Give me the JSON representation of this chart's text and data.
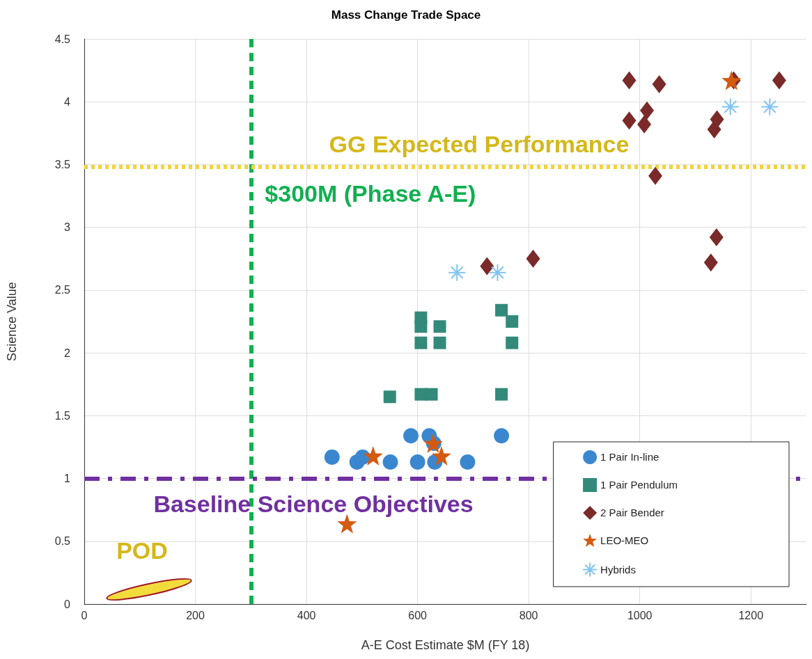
{
  "chart_data": {
    "type": "scatter",
    "title": "Mass Change Trade Space",
    "xlabel": "A-E Cost Estimate $M (FY 18)",
    "ylabel": "Science Value",
    "xlim": [
      0,
      1300
    ],
    "xticks": [
      0,
      200,
      400,
      600,
      800,
      1000,
      1200
    ],
    "ylim": [
      0,
      4.5
    ],
    "yticks": [
      0,
      0.5,
      1,
      1.5,
      2,
      2.5,
      3,
      3.5,
      4,
      4.5
    ],
    "grid": true,
    "legend": "bottom right",
    "series": [
      {
        "name": "1 Pair In-line",
        "color": "#3a87d0",
        "marker": "circle",
        "x": [
          446,
          491,
          501,
          551,
          588,
          600,
          621,
          629,
          631,
          690,
          751
        ],
        "values": [
          1.17,
          1.13,
          1.17,
          1.13,
          1.34,
          1.13,
          1.34,
          1.28,
          1.13,
          1.13,
          1.34
        ]
      },
      {
        "name": "1 Pair Pendulum",
        "color": "#338a7a",
        "marker": "square",
        "x": [
          550,
          606,
          625,
          606,
          606,
          606,
          640,
          640,
          751,
          770,
          770,
          751
        ],
        "values": [
          1.65,
          1.67,
          1.67,
          2.28,
          2.21,
          2.08,
          2.21,
          2.08,
          2.34,
          2.25,
          2.08,
          1.67
        ]
      },
      {
        "name": "2 Pair Bender",
        "color": "#7a2a28",
        "marker": "diamond",
        "x": [
          725,
          808,
          981,
          981,
          1013,
          1008,
          1035,
          1028,
          1134,
          1139,
          1138,
          1128,
          1169,
          1251
        ],
        "values": [
          2.69,
          2.75,
          3.85,
          4.17,
          3.93,
          3.82,
          4.14,
          3.41,
          3.78,
          3.86,
          2.92,
          2.72,
          4.17,
          4.17
        ]
      },
      {
        "name": "LEO-MEO",
        "color": "#d45a10",
        "marker": "star",
        "x": [
          473,
          520,
          628,
          643,
          1165
        ],
        "values": [
          0.64,
          1.18,
          1.28,
          1.18,
          4.17
        ]
      },
      {
        "name": "Hybrids",
        "color": "#80c4f0",
        "marker": "cross",
        "x": [
          671,
          744,
          1163,
          1234
        ],
        "values": [
          2.64,
          2.64,
          3.96,
          3.96
        ]
      }
    ],
    "ref_lines": [
      {
        "axis": "x",
        "value": 300,
        "label": "$300M (Phase A-E)",
        "color": "#10b050",
        "line_style": "dashed"
      },
      {
        "axis": "y",
        "value": 3.48,
        "label": "GG Expected Performance",
        "color": "#f2d43a",
        "line_style": "dotted"
      },
      {
        "axis": "y",
        "value": 1,
        "label": "Baseline Science Objectives",
        "color": "#7030a0",
        "line_style": "dashdot"
      }
    ],
    "annotations": [
      "POD"
    ]
  }
}
